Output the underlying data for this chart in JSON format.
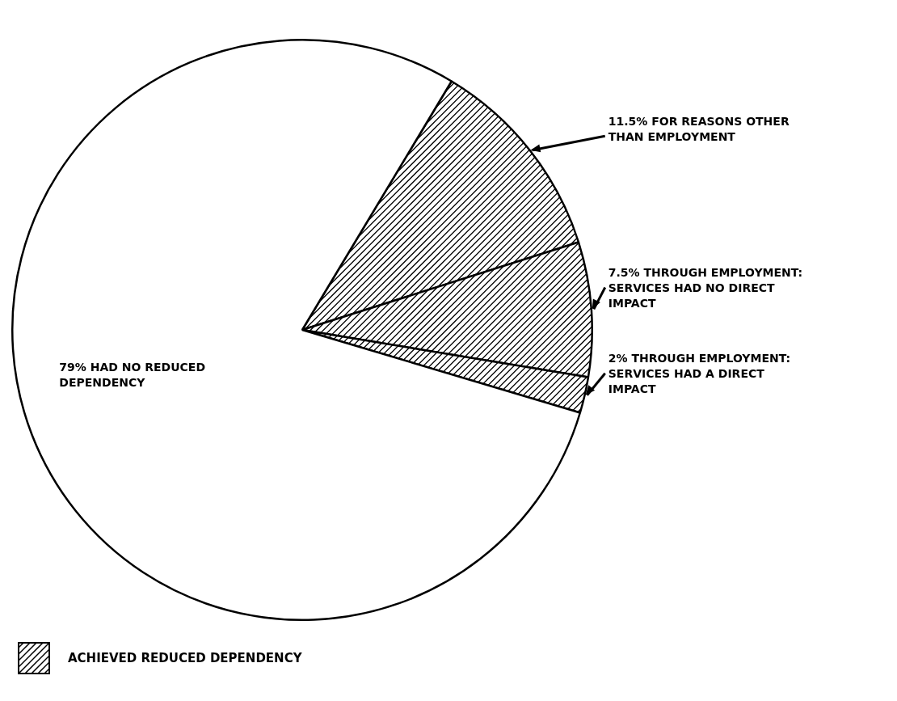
{
  "chart_data": {
    "type": "pie",
    "categories": [
      "11.5% FOR REASONS OTHER THAN EMPLOYMENT",
      "7.5% THROUGH EMPLOYMENT: SERVICES HAD NO DIRECT IMPACT",
      "2% THROUGH EMPLOYMENT: SERVICES HAD A DIRECT IMPACT",
      "79% HAD NO REDUCED DEPENDENCY"
    ],
    "values": [
      11.5,
      7.5,
      2,
      79
    ],
    "colors": [
      "#000000",
      "#000000",
      "#000000",
      "#ffffff"
    ],
    "annotations": [
      "ACHIEVED REDUCED DEPENDENCY"
    ]
  }
}
